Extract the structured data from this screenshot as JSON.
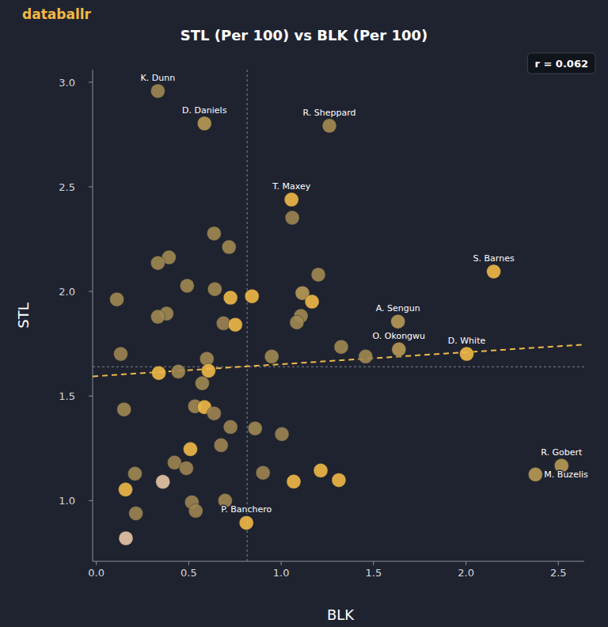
{
  "chart_data": {
    "type": "scatter",
    "source": "databallr",
    "title": "STL (Per 100) vs BLK (Per 100)",
    "annotation": "r = 0.062",
    "x_label": "BLK",
    "y_label": "STL",
    "xlim": [
      -0.02,
      2.64
    ],
    "ylim": [
      0.71,
      3.06
    ],
    "xticks": [
      {
        "value": 0,
        "label": "0.0"
      },
      0.5,
      {
        "value": 1,
        "label": "1.0"
      },
      1.5,
      {
        "value": 2,
        "label": "2.0"
      },
      2.5
    ],
    "yticks": [
      {
        "value": 1,
        "label": "1.0"
      },
      1.5,
      {
        "value": 2,
        "label": "2.0"
      },
      2.5,
      {
        "value": 3,
        "label": "3.0"
      }
    ],
    "grid": false,
    "x_mean": 0.816,
    "y_mean": 1.64,
    "trend_line": {
      "x": [
        -0.02,
        2.64
      ],
      "y": [
        1.594,
        1.746
      ]
    },
    "x": [
      0.333,
      0.585,
      1.261,
      1.056,
      1.06,
      0.637,
      0.718,
      0.393,
      0.333,
      2.15,
      1.201,
      0.491,
      0.641,
      0.726,
      0.842,
      0.111,
      1.115,
      1.167,
      1.107,
      0.38,
      0.333,
      0.688,
      0.752,
      1.085,
      1.632,
      1.325,
      1.637,
      2.004,
      0.949,
      1.457,
      0.132,
      0.598,
      0.338,
      0.444,
      0.607,
      0.573,
      0.15,
      0.534,
      0.585,
      0.637,
      0.726,
      0.859,
      1.004,
      0.509,
      0.675,
      0.423,
      0.487,
      0.209,
      0.902,
      1.214,
      1.068,
      1.312,
      2.517,
      2.376,
      0.158,
      0.517,
      0.697,
      0.538,
      0.214,
      0.812,
      0.36,
      0.16
    ],
    "y": [
      2.958,
      2.803,
      2.792,
      2.439,
      2.352,
      2.277,
      2.212,
      2.163,
      2.136,
      2.095,
      2.08,
      2.027,
      2.011,
      1.97,
      1.977,
      1.962,
      1.992,
      1.951,
      1.883,
      1.894,
      1.879,
      1.848,
      1.841,
      1.852,
      1.856,
      1.735,
      1.723,
      1.701,
      1.689,
      1.689,
      1.701,
      1.678,
      1.61,
      1.617,
      1.621,
      1.561,
      1.436,
      1.451,
      1.447,
      1.417,
      1.352,
      1.345,
      1.318,
      1.246,
      1.265,
      1.182,
      1.155,
      1.129,
      1.133,
      1.144,
      1.091,
      1.098,
      1.167,
      1.125,
      1.053,
      0.992,
      1.0,
      0.951,
      0.939,
      0.894,
      1.09,
      0.82
    ],
    "labels": [
      "K. Dunn",
      "D. Daniels",
      "R. Sheppard",
      "T. Maxey",
      null,
      null,
      null,
      null,
      null,
      "S. Barnes",
      null,
      null,
      null,
      null,
      null,
      null,
      null,
      null,
      null,
      null,
      null,
      null,
      null,
      null,
      "A. Sengun",
      null,
      "O. Okongwu",
      "D. White",
      null,
      null,
      null,
      null,
      null,
      null,
      null,
      null,
      null,
      null,
      null,
      null,
      null,
      null,
      null,
      null,
      null,
      null,
      null,
      null,
      null,
      null,
      null,
      null,
      "R. Gobert",
      "M. Buzelis",
      null,
      null,
      null,
      null,
      null,
      "P. Banchero",
      null,
      null
    ],
    "colors": [
      "#a08852",
      "#b89a55",
      "#a58b52",
      "#f0b948",
      "#9c8452",
      "#a08852",
      "#a08852",
      "#a08852",
      "#a08852",
      "#f0b948",
      "#a08852",
      "#a08852",
      "#a08852",
      "#f0b948",
      "#f0b948",
      "#a08852",
      "#b89a55",
      "#f0b948",
      "#a08852",
      "#a08852",
      "#a08852",
      "#9c8452",
      "#f0b948",
      "#a08852",
      "#b89a55",
      "#a08852",
      "#b89a55",
      "#f0b948",
      "#a08852",
      "#a08852",
      "#9c8452",
      "#a08852",
      "#f0b948",
      "#a08852",
      "#f0b948",
      "#a08852",
      "#a08852",
      "#a08852",
      "#f0b948",
      "#9c8452",
      "#9c8452",
      "#a08852",
      "#9c8452",
      "#f0b948",
      "#9c8452",
      "#9c8452",
      "#9c8452",
      "#a08852",
      "#9c8452",
      "#f0b948",
      "#f0b948",
      "#f0b948",
      "#b89a55",
      "#b89a55",
      "#f0b948",
      "#9c8452",
      "#a08852",
      "#9c8452",
      "#9c8452",
      "#f0b948",
      "#e8c6a6",
      "#e8c6a6"
    ]
  }
}
